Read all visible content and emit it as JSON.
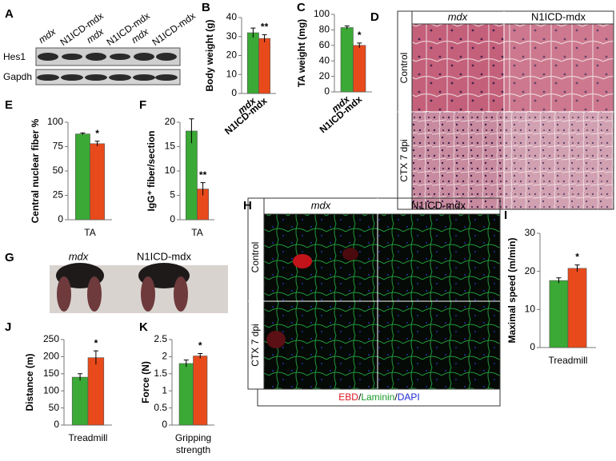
{
  "chart_data": [
    {
      "panel": "B",
      "type": "bar",
      "y_label": "Body weight (g)",
      "categories": [
        "mdx",
        "N1ICD-mdx"
      ],
      "values": [
        32,
        29
      ],
      "errors": [
        2.5,
        2
      ],
      "colors": [
        "#3aa935",
        "#e84a1b"
      ],
      "ylim": [
        0,
        40
      ],
      "yticks": [
        0,
        10,
        20,
        30,
        40
      ],
      "annotation": "**"
    },
    {
      "panel": "C",
      "type": "bar",
      "y_label": "TA weight (mg)",
      "categories": [
        "mdx",
        "N1ICD-mdx"
      ],
      "values": [
        83,
        60
      ],
      "errors": [
        2,
        3
      ],
      "colors": [
        "#3aa935",
        "#e84a1b"
      ],
      "ylim": [
        0,
        100
      ],
      "yticks": [
        0,
        20,
        40,
        60,
        80,
        100
      ],
      "annotation": "*"
    },
    {
      "panel": "E",
      "type": "bar",
      "y_label": "Central nuclear fiber %",
      "x_label": "TA",
      "values": [
        88,
        78
      ],
      "errors": [
        1,
        2.5
      ],
      "colors": [
        "#3aa935",
        "#e84a1b"
      ],
      "ylim": [
        0,
        100
      ],
      "yticks": [
        0,
        25,
        50,
        75,
        100
      ],
      "annotation": "*"
    },
    {
      "panel": "F",
      "type": "bar",
      "y_label": "IgG⁺ fiber/section",
      "x_label": "TA",
      "values": [
        18.2,
        6.3
      ],
      "errors": [
        2.5,
        1.3
      ],
      "colors": [
        "#3aa935",
        "#e84a1b"
      ],
      "ylim": [
        0,
        20
      ],
      "yticks": [
        0,
        5,
        10,
        15,
        20
      ],
      "annotation": "**"
    },
    {
      "panel": "I",
      "type": "bar",
      "y_label": "Maximal speed (m/min)",
      "x_label": "Treadmill",
      "values": [
        17.6,
        20.8
      ],
      "errors": [
        0.7,
        0.9
      ],
      "colors": [
        "#3aa935",
        "#e84a1b"
      ],
      "ylim": [
        0,
        30
      ],
      "yticks": [
        0,
        10,
        20,
        30
      ],
      "annotation": "*"
    },
    {
      "panel": "J",
      "type": "bar",
      "y_label": "Distance (m)",
      "x_label": "Treadmill",
      "values": [
        140,
        197
      ],
      "errors": [
        10,
        20
      ],
      "colors": [
        "#3aa935",
        "#e84a1b"
      ],
      "ylim": [
        0,
        250
      ],
      "yticks": [
        0,
        50,
        100,
        150,
        200,
        250
      ],
      "annotation": "*"
    },
    {
      "panel": "K",
      "type": "bar",
      "y_label": "Force (N)",
      "x_label": [
        "Gripping",
        "strength"
      ],
      "values": [
        1.8,
        2.02
      ],
      "errors": [
        0.1,
        0.07
      ],
      "colors": [
        "#3aa935",
        "#e84a1b"
      ],
      "ylim": [
        0,
        2.5
      ],
      "yticks": [
        0,
        0.5,
        1,
        1.5,
        2,
        2.5
      ],
      "annotation": "*"
    }
  ],
  "panels": {
    "A": {
      "label": "A",
      "lanes": [
        "mdx",
        "N1ICD-mdx",
        "mdx",
        "N1ICD-mdx",
        "mdx",
        "N1ICD-mdx"
      ],
      "rows": [
        "Hes1",
        "Gapdh"
      ]
    },
    "D": {
      "label": "D",
      "columns": [
        "mdx",
        "N1ICD-mdx"
      ],
      "rows": [
        "Control",
        "CTX 7 dpi"
      ]
    },
    "G": {
      "label": "G",
      "columns": [
        "mdx",
        "N1ICD-mdx"
      ]
    },
    "H": {
      "label": "H",
      "columns": [
        "mdx",
        "N1ICD-mdx"
      ],
      "rows": [
        "Control",
        "CTX 7 dpi"
      ],
      "caption": [
        "EBD",
        "/",
        "Laminin",
        "/",
        "DAPI"
      ]
    }
  }
}
